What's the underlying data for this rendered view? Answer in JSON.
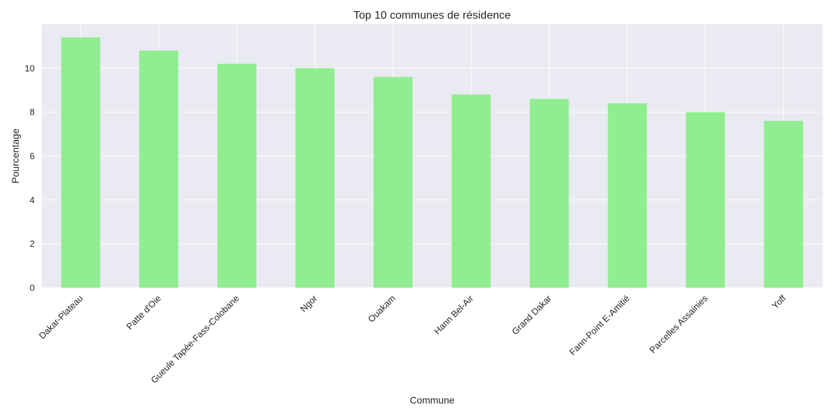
{
  "chart_data": {
    "type": "bar",
    "title": "Top 10 communes de résidence",
    "xlabel": "Commune",
    "ylabel": "Pourcentage",
    "categories": [
      "Dakar-Plateau",
      "Patte d'Oie",
      "Gueule Tapée-Fass-Colobane",
      "Ngor",
      "Ouakam",
      "Hann Bel-Air",
      "Grand Dakar",
      "Fann-Point E-Amitié",
      "Parcelles Assainies",
      "Yoff"
    ],
    "values": [
      11.4,
      10.8,
      10.2,
      10.0,
      9.6,
      8.8,
      8.6,
      8.4,
      8.0,
      7.6
    ],
    "ylim": [
      0,
      12
    ],
    "yticks": [
      0,
      2,
      4,
      6,
      8,
      10
    ],
    "grid": true,
    "legend": "none",
    "colors": {
      "bar": "#90ee90",
      "plot_background": "#eaeaf2",
      "grid": "#ffffff",
      "text": "#262626"
    }
  }
}
